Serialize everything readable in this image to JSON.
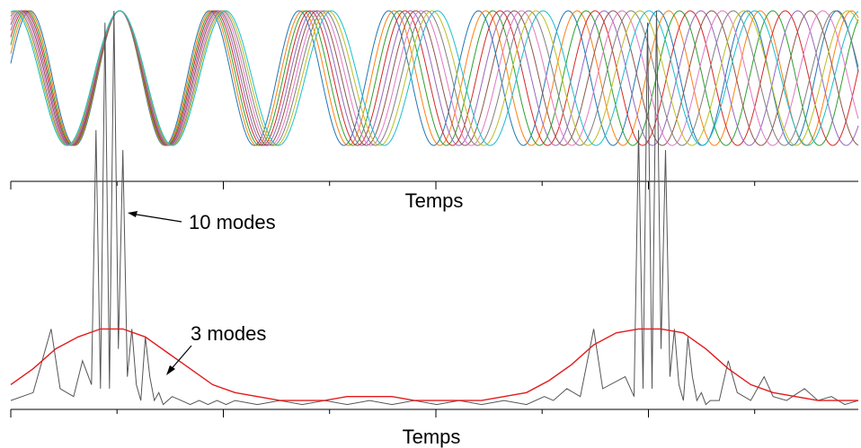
{
  "chart_data": [
    {
      "type": "line",
      "title": "",
      "xlabel": "Temps",
      "ylabel": "",
      "description_series": {
        "mode_count": 10,
        "colors": [
          "#1f77b4",
          "#ff7f0e",
          "#2ca02c",
          "#d62728",
          "#9467bd",
          "#8c564b",
          "#e377c2",
          "#7f7f7f",
          "#bcbd22",
          "#17becf"
        ],
        "base_period": 20,
        "period_step": 0.4,
        "x_range": [
          0,
          189
        ],
        "y_range": [
          -1,
          1
        ]
      },
      "grid": false,
      "legend": false
    },
    {
      "type": "line",
      "title": "",
      "xlabel": "Temps",
      "ylabel": "",
      "x_range": [
        0,
        189
      ],
      "series": [
        {
          "color": "#555555",
          "x": [
            0,
            5,
            9,
            11,
            14,
            16,
            18,
            19,
            20,
            21,
            22,
            23,
            24,
            25,
            26,
            27,
            28,
            29,
            30,
            31,
            32,
            33,
            34,
            35,
            36,
            38,
            40,
            42,
            44,
            46,
            48,
            50,
            55,
            60,
            65,
            70,
            75,
            80,
            85,
            90,
            95,
            100,
            105,
            110,
            115,
            119,
            121,
            124,
            127,
            130,
            132,
            137,
            139,
            140,
            141,
            142,
            143,
            144,
            145,
            146,
            147,
            148,
            149,
            150,
            151,
            152,
            153,
            154,
            155,
            156,
            158,
            160,
            162,
            165,
            168,
            170,
            173,
            177,
            180,
            183,
            186,
            189
          ],
          "y": [
            0.02,
            0.04,
            0.2,
            0.05,
            0.03,
            0.12,
            0.06,
            0.7,
            0.05,
            0.97,
            0.05,
            1.0,
            0.15,
            0.65,
            0.08,
            0.2,
            0.06,
            0.02,
            0.18,
            0.08,
            0.02,
            0.04,
            0.01,
            0.02,
            0.03,
            0.02,
            0.01,
            0.02,
            0.01,
            0.02,
            0.01,
            0.02,
            0.01,
            0.02,
            0.01,
            0.02,
            0.01,
            0.02,
            0.01,
            0.02,
            0.01,
            0.02,
            0.01,
            0.02,
            0.01,
            0.03,
            0.02,
            0.05,
            0.03,
            0.2,
            0.05,
            0.08,
            0.03,
            0.7,
            0.05,
            0.97,
            0.05,
            1.0,
            0.15,
            0.65,
            0.08,
            0.2,
            0.06,
            0.02,
            0.18,
            0.08,
            0.02,
            0.04,
            0.01,
            0.02,
            0.02,
            0.12,
            0.04,
            0.02,
            0.08,
            0.03,
            0.02,
            0.05,
            0.02,
            0.03,
            0.01,
            0.02
          ]
        },
        {
          "color": "#e41a1c",
          "x": [
            0,
            5,
            10,
            15,
            20,
            25,
            30,
            35,
            40,
            45,
            50,
            55,
            60,
            65,
            70,
            75,
            80,
            85,
            90,
            95,
            100,
            105,
            110,
            115,
            120,
            125,
            130,
            135,
            140,
            145,
            150,
            155,
            160,
            165,
            170,
            175,
            180,
            185,
            189
          ],
          "y": [
            0.06,
            0.1,
            0.15,
            0.18,
            0.2,
            0.2,
            0.18,
            0.14,
            0.1,
            0.06,
            0.04,
            0.03,
            0.02,
            0.02,
            0.02,
            0.03,
            0.03,
            0.03,
            0.02,
            0.02,
            0.02,
            0.02,
            0.03,
            0.04,
            0.07,
            0.11,
            0.16,
            0.19,
            0.2,
            0.2,
            0.19,
            0.15,
            0.1,
            0.06,
            0.04,
            0.03,
            0.02,
            0.02,
            0.02
          ]
        }
      ],
      "annotations": [
        {
          "text": "10 modes",
          "target_x": 26.8,
          "target_y": 0.97
        },
        {
          "text": "3 modes",
          "target_x": 35,
          "target_y": 0.15
        }
      ],
      "grid": false,
      "legend": false
    }
  ]
}
